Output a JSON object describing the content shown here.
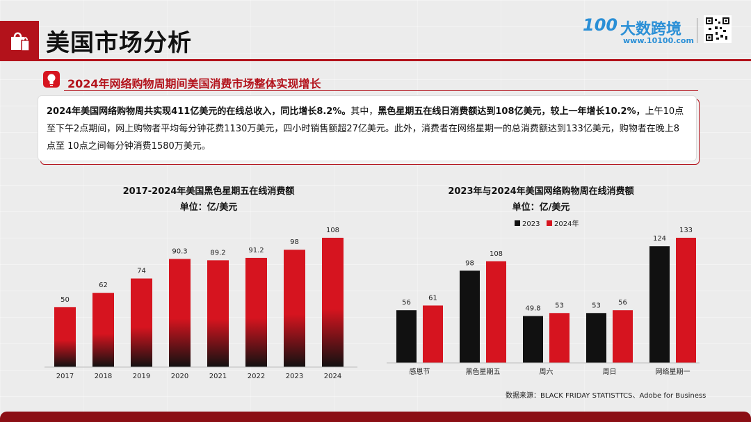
{
  "header": {
    "title": "美国市场分析",
    "logo_mark": "100",
    "logo_name": "大数跨境",
    "logo_url": "www.10100.com"
  },
  "section": {
    "subtitle": "2024年网络购物周期间美国消费市场整体实现增长",
    "summary": {
      "b1": "2024年美国网络购物周共实现411亿美元的在线总收入，同比增长8.2%。",
      "t1": "其中，",
      "b2": "黑色星期五在线日消费额达到108亿美元，较上一年增长10.2%，",
      "t2": "上午10点至下午2点期间，网上购物者平均每分钟花费1130万美元，四小时销售额超27亿美元。此外，消费者在网络星期一的总消费额达到133亿美元，购物者在晚上8点至 10点之间每分钟消费1580万美元。"
    }
  },
  "source_note": "数据来源：BLACK FRIDAY STATISTTCS、Adobe for Business",
  "colors": {
    "accent": "#b3121b",
    "dark": "#111111",
    "red": "#d6141f"
  },
  "chart_data": [
    {
      "type": "bar",
      "title": "2017-2024年美国黑色星期五在线消费额",
      "subtitle": "单位：亿/美元",
      "categories": [
        "2017",
        "2018",
        "2019",
        "2020",
        "2021",
        "2022",
        "2023",
        "2024"
      ],
      "values": [
        50,
        62,
        74,
        90.3,
        89.2,
        91.2,
        98,
        108
      ],
      "ylim": [
        0,
        108
      ],
      "grid": false,
      "legend": "none"
    },
    {
      "type": "bar",
      "title": "2023年与2024年美国网络购物周在线消费额",
      "subtitle": "单位：亿/美元",
      "categories": [
        "感恩节",
        "黑色星期五",
        "周六",
        "周日",
        "网络星期一"
      ],
      "series": [
        {
          "name": "2023",
          "values": [
            56,
            98,
            49.8,
            53,
            124
          ],
          "color": "#111111"
        },
        {
          "name": "2024年",
          "values": [
            61,
            108,
            53,
            56,
            133
          ],
          "color": "#d6141f"
        }
      ],
      "ylim": [
        0,
        133
      ],
      "grid": false,
      "legend": "top-center"
    }
  ]
}
